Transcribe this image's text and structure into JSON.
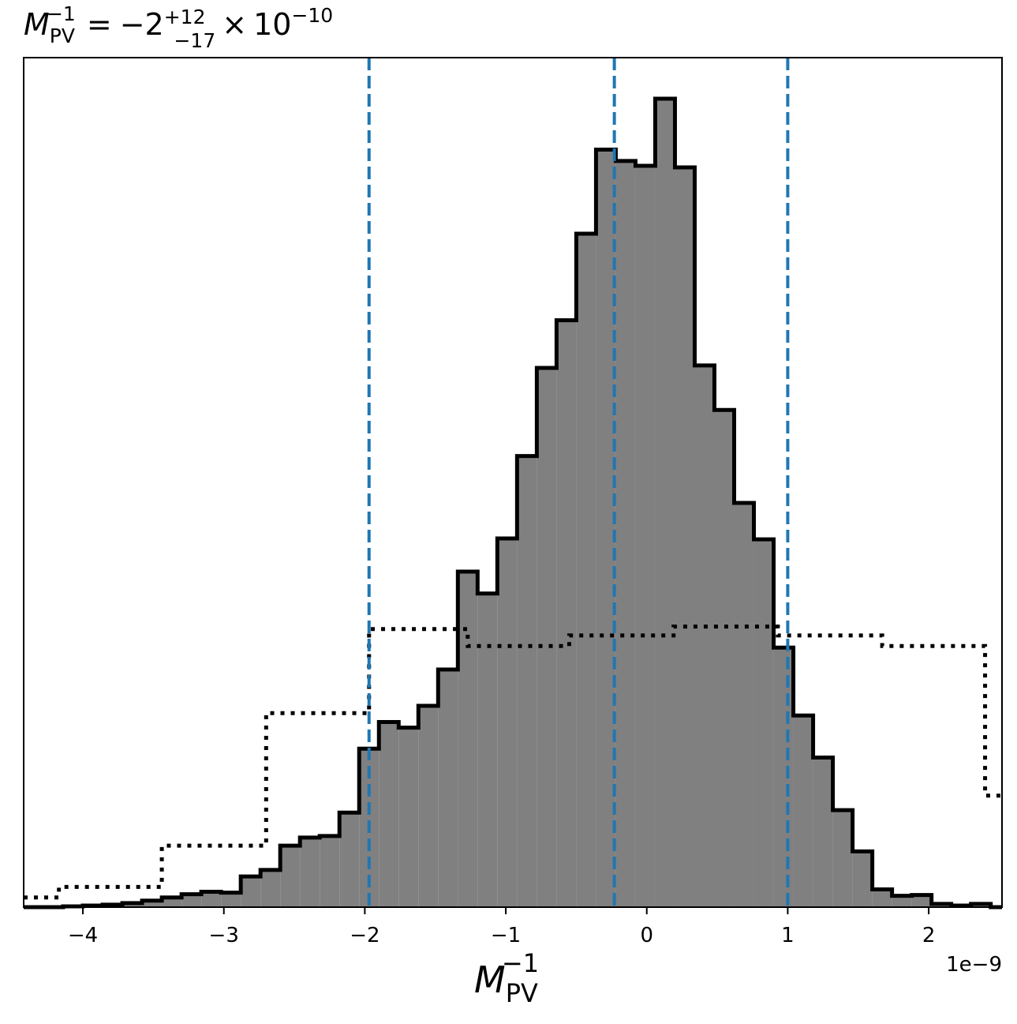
{
  "chart_data": {
    "type": "histogram",
    "title": {
      "symbol": "M",
      "subscript": "PV",
      "superscript": "−1",
      "equals": "=",
      "value": "−2",
      "err_plus": "+12",
      "err_minus": "−17",
      "times": "×",
      "base": "10",
      "exponent": "−10"
    },
    "xlabel": {
      "symbol": "M",
      "subscript": "PV",
      "superscript": "−1"
    },
    "offset_text": "1e−9",
    "xlim": [
      -4.42e-09,
      2.52e-09
    ],
    "ylim": [
      0,
      1.0
    ],
    "grid": false,
    "x_ticks": [
      -4e-09,
      -3e-09,
      -2e-09,
      -1e-09,
      0,
      1e-09,
      2e-09
    ],
    "x_tick_labels": [
      "−4",
      "−3",
      "−2",
      "−1",
      "0",
      "1",
      "2"
    ],
    "y_ticks_visible": false,
    "posterior": {
      "style": "filled step",
      "fill_color": "#808080",
      "edge_color": "#000000",
      "bin_edges": [
        -4.42e-09,
        -4.28e-09,
        -4.14e-09,
        -4e-09,
        -3.86e-09,
        -3.72e-09,
        -3.58e-09,
        -3.44e-09,
        -3.3e-09,
        -3.16e-09,
        -3.02e-09,
        -2.88e-09,
        -2.74e-09,
        -2.6e-09,
        -2.46e-09,
        -2.32e-09,
        -2.18e-09,
        -2.04e-09,
        -1.9e-09,
        -1.76e-09,
        -1.62e-09,
        -1.48e-09,
        -1.34e-09,
        -1.2e-09,
        -1.06e-09,
        -9.2e-10,
        -7.8e-10,
        -6.4e-10,
        -5e-10,
        -3.6e-10,
        -2.2e-10,
        -8e-11,
        6e-11,
        2e-10,
        3.4e-10,
        4.8e-10,
        6.2e-10,
        7.6e-10,
        9e-10,
        1.04e-09,
        1.18e-09,
        1.32e-09,
        1.46e-09,
        1.6e-09,
        1.74e-09,
        1.88e-09,
        2.02e-09,
        2.16e-09,
        2.3e-09,
        2.44e-09,
        2.52e-09
      ],
      "values": [
        0.0,
        0.0,
        0.001,
        0.002,
        0.003,
        0.005,
        0.008,
        0.012,
        0.016,
        0.019,
        0.018,
        0.038,
        0.046,
        0.076,
        0.086,
        0.088,
        0.117,
        0.196,
        0.229,
        0.222,
        0.249,
        0.294,
        0.415,
        0.388,
        0.456,
        0.558,
        0.667,
        0.726,
        0.833,
        0.937,
        0.923,
        0.917,
        1.0,
        0.915,
        0.67,
        0.615,
        0.5,
        0.455,
        0.321,
        0.237,
        0.185,
        0.12,
        0.069,
        0.022,
        0.014,
        0.015,
        0.004,
        0.002,
        0.004,
        0.0
      ]
    },
    "prior": {
      "style": "dotted step",
      "color": "#000000",
      "bin_edges": [
        -4.42e-09,
        -4.17e-09,
        -3.44e-09,
        -2.7e-09,
        -1.97e-09,
        -1.27e-09,
        -5.5e-10,
        1.9e-10,
        9.3e-10,
        1.67e-09,
        2.4e-09,
        2.52e-09
      ],
      "values": [
        0.012,
        0.025,
        0.076,
        0.24,
        0.344,
        0.323,
        0.336,
        0.347,
        0.336,
        0.323,
        0.138
      ]
    },
    "quantile_lines": {
      "style": "dashed",
      "color": "#1f77b4",
      "values": [
        -1.97e-09,
        -2.3e-10,
        1e-09
      ]
    }
  }
}
